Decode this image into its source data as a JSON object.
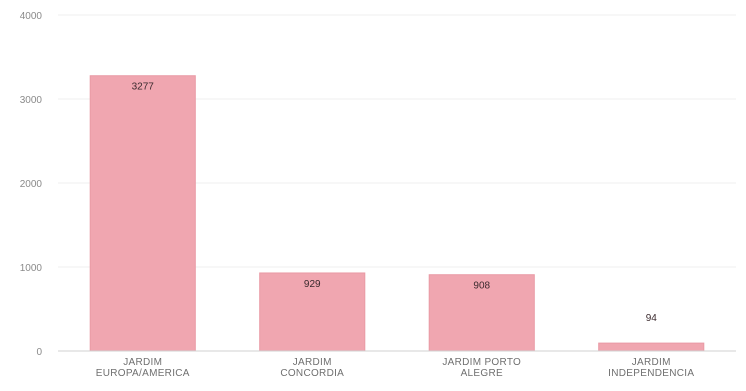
{
  "chart_data": {
    "type": "bar",
    "categories": [
      [
        "JARDIM",
        "EUROPA/AMERICA"
      ],
      [
        "JARDIM",
        "CONCORDIA"
      ],
      [
        "JARDIM PORTO",
        "ALEGRE"
      ],
      [
        "JARDIM",
        "INDEPENDENCIA"
      ]
    ],
    "values": [
      3277,
      929,
      908,
      94
    ],
    "data_labels": [
      "3277",
      "929",
      "908",
      "94"
    ],
    "yticks": [
      "0",
      "1000",
      "2000",
      "3000",
      "4000"
    ],
    "ylim": [
      0,
      4000
    ],
    "grid": true,
    "bar_color": "#f0a6b0",
    "bar_edge_color": "#e99aa5",
    "title": "",
    "xlabel": "",
    "ylabel": ""
  }
}
